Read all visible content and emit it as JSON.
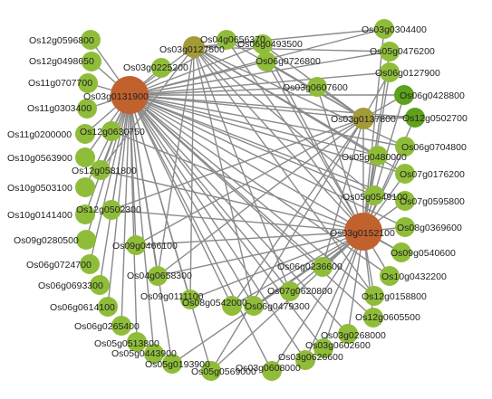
{
  "colors": {
    "hub": "#c0612e",
    "secondary": "#a39a38",
    "leaf": "#8fbd3a",
    "dark_leaf": "#5ea11c",
    "edge": "#8a8a8a"
  },
  "nodes": [
    {
      "id": "Os03g0131900",
      "kind": "hub"
    },
    {
      "id": "Os03g0152100",
      "kind": "hub"
    },
    {
      "id": "Os03g0127500",
      "kind": "secondary"
    },
    {
      "id": "Os03g0137800",
      "kind": "secondary"
    },
    {
      "id": "Os12g0596800",
      "kind": "leaf"
    },
    {
      "id": "Os12g0498650",
      "kind": "leaf"
    },
    {
      "id": "Os11g0707700",
      "kind": "leaf"
    },
    {
      "id": "Os11g0303400",
      "kind": "leaf"
    },
    {
      "id": "Os11g0200000",
      "kind": "leaf"
    },
    {
      "id": "Os10g0563900",
      "kind": "leaf"
    },
    {
      "id": "Os10g0503100",
      "kind": "leaf"
    },
    {
      "id": "Os10g0141400",
      "kind": "leaf"
    },
    {
      "id": "Os09g0280500",
      "kind": "leaf"
    },
    {
      "id": "Os06g0724700",
      "kind": "leaf"
    },
    {
      "id": "Os06g0693300",
      "kind": "leaf"
    },
    {
      "id": "Os06g0614100",
      "kind": "leaf"
    },
    {
      "id": "Os06g0265400",
      "kind": "leaf"
    },
    {
      "id": "Os05g0513800",
      "kind": "leaf"
    },
    {
      "id": "Os05g0443900",
      "kind": "leaf"
    },
    {
      "id": "Os05g0193900",
      "kind": "leaf"
    },
    {
      "id": "Os05g0569000",
      "kind": "leaf"
    },
    {
      "id": "Os03g0608000",
      "kind": "leaf"
    },
    {
      "id": "Os03g0626600",
      "kind": "leaf"
    },
    {
      "id": "Os03g0602600",
      "kind": "leaf"
    },
    {
      "id": "Os03g0268000",
      "kind": "leaf"
    },
    {
      "id": "Os12g0605500",
      "kind": "leaf"
    },
    {
      "id": "Os12g0158800",
      "kind": "leaf"
    },
    {
      "id": "Os10g0432200",
      "kind": "leaf"
    },
    {
      "id": "Os09g0540600",
      "kind": "leaf"
    },
    {
      "id": "Os08g0369600",
      "kind": "leaf"
    },
    {
      "id": "Os07g0595800",
      "kind": "leaf"
    },
    {
      "id": "Os07g0176200",
      "kind": "leaf"
    },
    {
      "id": "Os06g0704800",
      "kind": "leaf"
    },
    {
      "id": "Os06g0428800",
      "kind": "dark_leaf"
    },
    {
      "id": "Os12g0502700",
      "kind": "dark_leaf"
    },
    {
      "id": "Os06g0127900",
      "kind": "leaf"
    },
    {
      "id": "Os05g0476200",
      "kind": "leaf"
    },
    {
      "id": "Os03g0304400",
      "kind": "leaf"
    },
    {
      "id": "Os04g0656370",
      "kind": "leaf"
    },
    {
      "id": "Os06g0493500",
      "kind": "leaf"
    },
    {
      "id": "Os06g0726800",
      "kind": "leaf"
    },
    {
      "id": "Os03g0225200",
      "kind": "leaf"
    },
    {
      "id": "Os03g0607600",
      "kind": "leaf"
    },
    {
      "id": "Os12g0630750",
      "kind": "leaf"
    },
    {
      "id": "Os12g0581800",
      "kind": "leaf"
    },
    {
      "id": "Os12g0502300",
      "kind": "leaf"
    },
    {
      "id": "Os09g0466100",
      "kind": "leaf"
    },
    {
      "id": "Os04g0658300",
      "kind": "leaf"
    },
    {
      "id": "Os09g0111100",
      "kind": "leaf"
    },
    {
      "id": "Os08g0542000",
      "kind": "leaf"
    },
    {
      "id": "Os06g0479300",
      "kind": "leaf"
    },
    {
      "id": "Os07g0620800",
      "kind": "leaf"
    },
    {
      "id": "Os06g0236600",
      "kind": "leaf"
    },
    {
      "id": "Os05g0480000",
      "kind": "leaf"
    },
    {
      "id": "Os05g0549100",
      "kind": "leaf"
    }
  ]
}
